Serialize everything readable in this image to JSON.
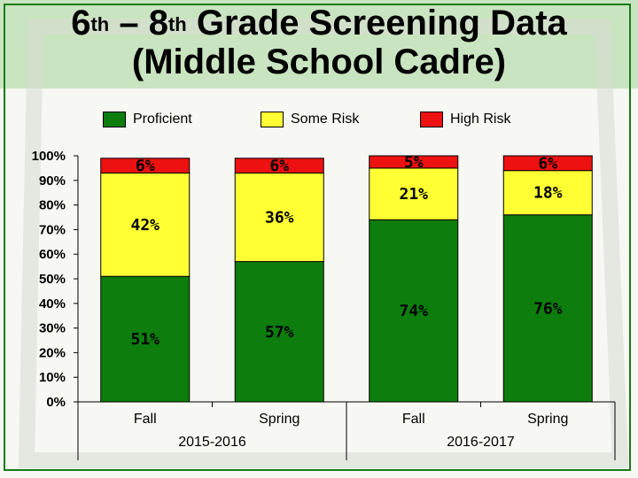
{
  "slide": {
    "title_a": "6",
    "title_sup_a": "th",
    "title_b": " – 8",
    "title_sup_b": "th",
    "title_c": " Grade Screening Data",
    "title_line2": "(Middle School Cadre)"
  },
  "colors": {
    "proficient": "#0d7d0d",
    "some_risk": "#ffff33",
    "high_risk": "#ee1111",
    "header_bg": "#c9e4c0",
    "border": "#1a7a1a"
  },
  "chart_data": {
    "type": "bar",
    "stacked": true,
    "legend": "top",
    "grid": false,
    "y_ticks": [
      "0%",
      "10%",
      "20%",
      "30%",
      "40%",
      "50%",
      "60%",
      "70%",
      "80%",
      "90%",
      "100%"
    ],
    "ylim": [
      0,
      100
    ],
    "categories": [
      "Fall",
      "Spring",
      "Fall",
      "Spring"
    ],
    "groups": [
      {
        "label": "2015-2016",
        "categories": [
          "Fall",
          "Spring"
        ]
      },
      {
        "label": "2016-2017",
        "categories": [
          "Fall",
          "Spring"
        ]
      }
    ],
    "series": [
      {
        "name": "Proficient",
        "values": [
          51,
          57,
          74,
          76
        ],
        "labels": [
          "51%",
          "57%",
          "74%",
          "76%"
        ]
      },
      {
        "name": "Some Risk",
        "values": [
          42,
          36,
          21,
          18
        ],
        "labels": [
          "42%",
          "36%",
          "21%",
          "18%"
        ]
      },
      {
        "name": "High Risk",
        "values": [
          6,
          6,
          5,
          6
        ],
        "labels": [
          "6%",
          "6%",
          "5%",
          "6%"
        ]
      }
    ]
  }
}
